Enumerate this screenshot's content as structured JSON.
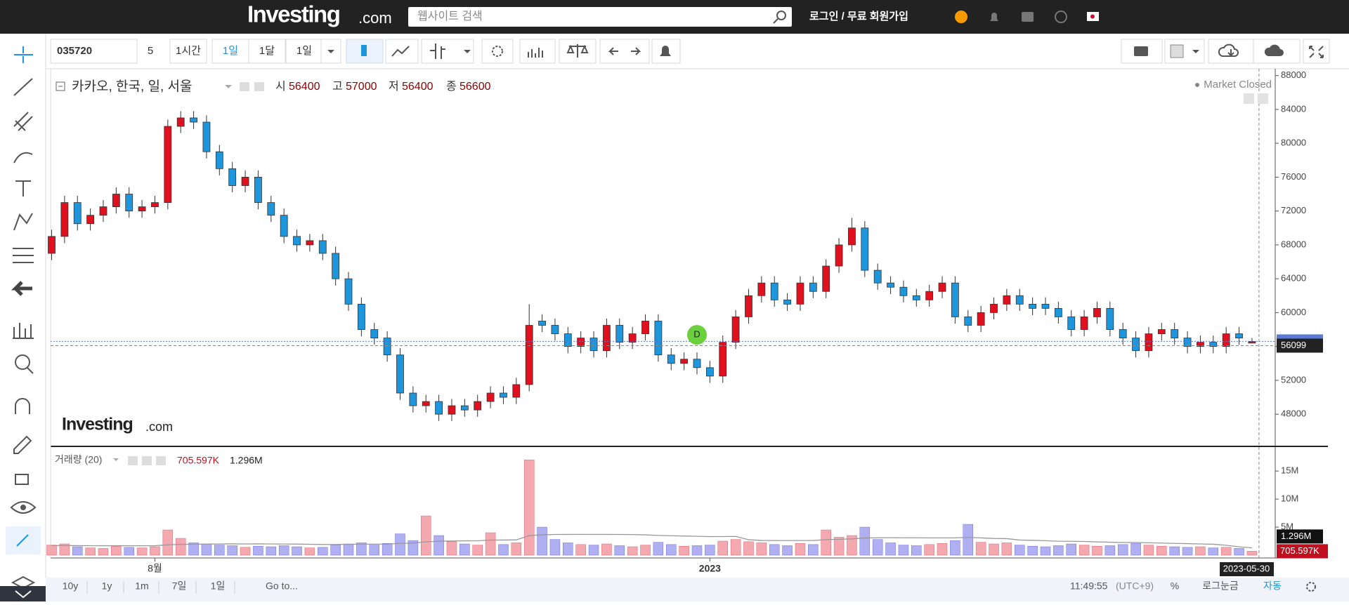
{
  "header": {
    "logo": "Investing",
    "logo_suffix": ".com",
    "search_placeholder": "웹사이트 검색",
    "login": "로그인 / 무료 회원가입"
  },
  "toolbar": {
    "symbol": "035720",
    "intervals": [
      "5",
      "1시간",
      "1일",
      "1달",
      "1일"
    ],
    "active_interval": 2
  },
  "market_status": "Market Closed",
  "watermark": {
    "logo": "Investing",
    "suffix": ".com"
  },
  "chart_data": [
    {
      "type": "candlestick",
      "title": "카카오, 한국, 일, 서울",
      "ohlc_labels": [
        "시",
        "고",
        "저",
        "종"
      ],
      "categories": [
        null,
        null,
        null,
        null,
        null,
        null,
        null,
        null,
        "8월",
        null,
        null,
        null,
        null,
        null,
        null,
        null,
        null,
        null,
        null,
        null,
        null,
        null,
        null,
        null,
        null,
        null,
        null,
        null,
        null,
        null,
        null,
        null,
        null,
        null,
        null,
        null,
        null,
        null,
        null,
        null,
        null,
        null,
        null,
        null,
        null,
        null,
        null,
        null,
        null,
        null,
        null,
        "2023",
        null,
        null,
        null,
        null,
        null,
        null,
        null,
        null,
        null,
        null,
        null,
        null,
        null,
        null,
        null,
        null,
        null,
        null,
        null,
        null,
        null,
        null,
        null,
        null,
        null,
        null,
        null,
        null,
        null,
        null,
        null,
        null,
        null,
        null,
        null,
        null,
        null,
        null,
        null,
        null,
        null,
        null
      ],
      "open": [
        67000,
        69000,
        73000,
        70500,
        71500,
        72500,
        74000,
        72000,
        72500,
        73000,
        82000,
        83000,
        82500,
        79000,
        77000,
        75000,
        76000,
        73000,
        71500,
        69000,
        68000,
        68500,
        67000,
        64000,
        61000,
        58000,
        57000,
        55000,
        50500,
        49000,
        49500,
        48000,
        49000,
        48500,
        49500,
        50500,
        50000,
        51500,
        59000,
        58500,
        57500,
        56000,
        57000,
        55500,
        58500,
        56500,
        57500,
        59000,
        55000,
        54000,
        54500,
        53500,
        52500,
        56500,
        59500,
        62000,
        63500,
        61500,
        61000,
        63500,
        62500,
        65500,
        68000,
        70000,
        65000,
        63500,
        63000,
        62000,
        61500,
        62500,
        63500,
        59500,
        58500,
        60000,
        61000,
        62000,
        61000,
        61000,
        60500,
        59500,
        58000,
        59500,
        60500,
        58000,
        57000,
        55500,
        57500,
        58000,
        57000,
        56000,
        56500,
        56000,
        57500,
        56400
      ],
      "high": [
        69800,
        73800,
        73800,
        72300,
        73300,
        74800,
        74800,
        73300,
        73800,
        82800,
        83800,
        83800,
        83300,
        79800,
        77800,
        76800,
        76800,
        73800,
        72300,
        69800,
        69300,
        69300,
        67800,
        64800,
        61800,
        58800,
        57800,
        55800,
        51300,
        50300,
        50300,
        49800,
        49800,
        50300,
        51300,
        51300,
        52300,
        61000,
        59800,
        59300,
        58300,
        57800,
        57800,
        59300,
        59300,
        58300,
        59800,
        59800,
        55800,
        55300,
        55300,
        54300,
        57300,
        60300,
        62800,
        64300,
        64300,
        62300,
        64300,
        64300,
        66300,
        68800,
        71200,
        70800,
        65800,
        64300,
        63800,
        62800,
        63300,
        64300,
        64300,
        60300,
        60800,
        61800,
        62800,
        62800,
        61800,
        61800,
        61300,
        60300,
        60300,
        61300,
        61300,
        58800,
        57800,
        58300,
        58800,
        58800,
        57800,
        57300,
        57300,
        58300,
        58300,
        57000
      ],
      "low": [
        66200,
        68200,
        69700,
        69700,
        70700,
        71700,
        71200,
        71200,
        71700,
        72200,
        81200,
        81700,
        78200,
        76200,
        74200,
        74200,
        72200,
        70700,
        68200,
        67200,
        67200,
        66200,
        63200,
        60200,
        57200,
        56200,
        54200,
        49700,
        48200,
        48200,
        47200,
        47200,
        47700,
        47700,
        48700,
        49200,
        49200,
        50700,
        57700,
        56700,
        55200,
        55200,
        54700,
        54700,
        55700,
        55700,
        56700,
        54200,
        53200,
        53200,
        52700,
        51700,
        51700,
        55700,
        58700,
        61200,
        60700,
        60200,
        60200,
        61700,
        61700,
        64700,
        67200,
        64200,
        62700,
        62200,
        61200,
        60700,
        60700,
        61700,
        58700,
        57700,
        57700,
        59200,
        60200,
        60200,
        59700,
        59700,
        58700,
        57200,
        57200,
        58700,
        57200,
        56200,
        54700,
        54700,
        56700,
        56200,
        55200,
        55200,
        55200,
        55200,
        56200,
        56400
      ],
      "close": [
        69000,
        73000,
        70500,
        71500,
        72500,
        74000,
        72000,
        72500,
        73000,
        82000,
        83000,
        82500,
        79000,
        77000,
        75000,
        76000,
        73000,
        71500,
        69000,
        68000,
        68500,
        67000,
        64000,
        61000,
        58000,
        57000,
        55000,
        50500,
        49000,
        49500,
        48000,
        49000,
        48500,
        49500,
        50500,
        50000,
        51500,
        58500,
        58500,
        57500,
        56000,
        57000,
        55500,
        58500,
        56500,
        57500,
        59000,
        55000,
        54000,
        54500,
        53500,
        52500,
        56500,
        59500,
        62000,
        63500,
        61500,
        61000,
        63500,
        62500,
        65500,
        68000,
        70000,
        65000,
        63500,
        63000,
        62000,
        61500,
        62500,
        63500,
        59500,
        58500,
        60000,
        61000,
        62000,
        61000,
        60500,
        60500,
        59500,
        58000,
        59500,
        60500,
        58000,
        57000,
        55500,
        57500,
        58000,
        57000,
        56000,
        56500,
        56000,
        57500,
        57000,
        56600
      ],
      "up_color": "#e0101e",
      "down_color": "#1e96dc",
      "price_line_color": "#5b7bd6",
      "ylim": [
        44200,
        88800
      ],
      "yticks": [
        48000,
        52000,
        56000,
        60000,
        64000,
        68000,
        72000,
        76000,
        80000,
        84000,
        88000
      ],
      "crosshair_price": 56099,
      "crosshair_date": "2023-05-30",
      "dividend_marker": {
        "index": 50,
        "label": "D"
      }
    },
    {
      "type": "bar",
      "title": "거래량 (20)",
      "values": [
        1800000,
        2000000,
        1500000,
        1300000,
        1200000,
        1600000,
        1400000,
        1300000,
        1500000,
        4500000,
        3000000,
        2200000,
        2000000,
        1800000,
        1700000,
        1400000,
        1600000,
        1500000,
        1700000,
        1500000,
        1300000,
        1400000,
        1800000,
        2000000,
        2200000,
        1800000,
        2100000,
        3800000,
        2600000,
        7000000,
        3500000,
        2400000,
        2000000,
        1800000,
        4000000,
        1900000,
        2200000,
        17000000,
        5000000,
        2800000,
        2200000,
        1900000,
        1800000,
        2000000,
        1700000,
        1500000,
        1800000,
        2300000,
        1900000,
        1600000,
        1700000,
        1800000,
        2500000,
        2800000,
        2400000,
        2200000,
        1900000,
        1700000,
        2100000,
        1900000,
        4500000,
        3200000,
        3500000,
        5000000,
        2800000,
        2200000,
        1800000,
        1700000,
        1900000,
        2100000,
        2600000,
        5500000,
        2300000,
        2000000,
        2200000,
        1800000,
        1600000,
        1500000,
        1700000,
        2000000,
        1800000,
        1600000,
        1700000,
        1900000,
        2100000,
        1800000,
        1600000,
        1500000,
        1400000,
        1500000,
        1300000,
        1400000,
        1200000,
        705597
      ],
      "last_value_label": "705.597K",
      "ma_values": [
        1700000,
        1720000,
        1700000,
        1690000,
        1680000,
        1690000,
        1680000,
        1670000,
        1680000,
        1850000,
        1930000,
        1960000,
        1980000,
        2000000,
        2010000,
        2000000,
        2010000,
        2000000,
        1990000,
        1980000,
        1940000,
        1900000,
        1910000,
        1930000,
        1960000,
        1970000,
        1990000,
        2100000,
        2150000,
        2380000,
        2480000,
        2530000,
        2560000,
        2570000,
        2690000,
        2700000,
        2730000,
        3480000,
        3640000,
        3690000,
        3700000,
        3710000,
        3700000,
        3700000,
        3690000,
        3680000,
        3620000,
        3520000,
        3460000,
        3420000,
        3360000,
        3310000,
        3320000,
        3350000,
        2760000,
        2620000,
        2610000,
        2600000,
        2610000,
        2620000,
        2770000,
        2830000,
        2900000,
        3060000,
        3100000,
        3110000,
        3100000,
        3100000,
        3080000,
        3080000,
        3080000,
        3180000,
        3080000,
        2980000,
        2950000,
        2700000,
        2650000,
        2580000,
        2490000,
        2470000,
        2440000,
        2370000,
        2310000,
        2270000,
        2270000,
        2210000,
        2160000,
        2100000,
        2060000,
        2000000,
        1950000,
        1770000,
        1490000,
        1296000
      ],
      "ma_last_label": "1.296M",
      "ma_color": "#999999",
      "up_color": "#f2a0a6",
      "down_color": "#a6a6f0",
      "ylim": [
        0,
        19400000
      ],
      "yticks": [
        {
          "value": 5000000,
          "label": "5M"
        },
        {
          "value": 10000000,
          "label": "10M"
        },
        {
          "value": 15000000,
          "label": "15M"
        }
      ]
    }
  ],
  "bottom_bar": {
    "ranges": [
      "10y",
      "1y",
      "1m",
      "7일",
      "1일"
    ],
    "goto": "Go to...",
    "clock": "11:49:55",
    "timezone": "(UTC+9)",
    "percent": "%",
    "log": "로그눈금",
    "auto": "자동"
  }
}
